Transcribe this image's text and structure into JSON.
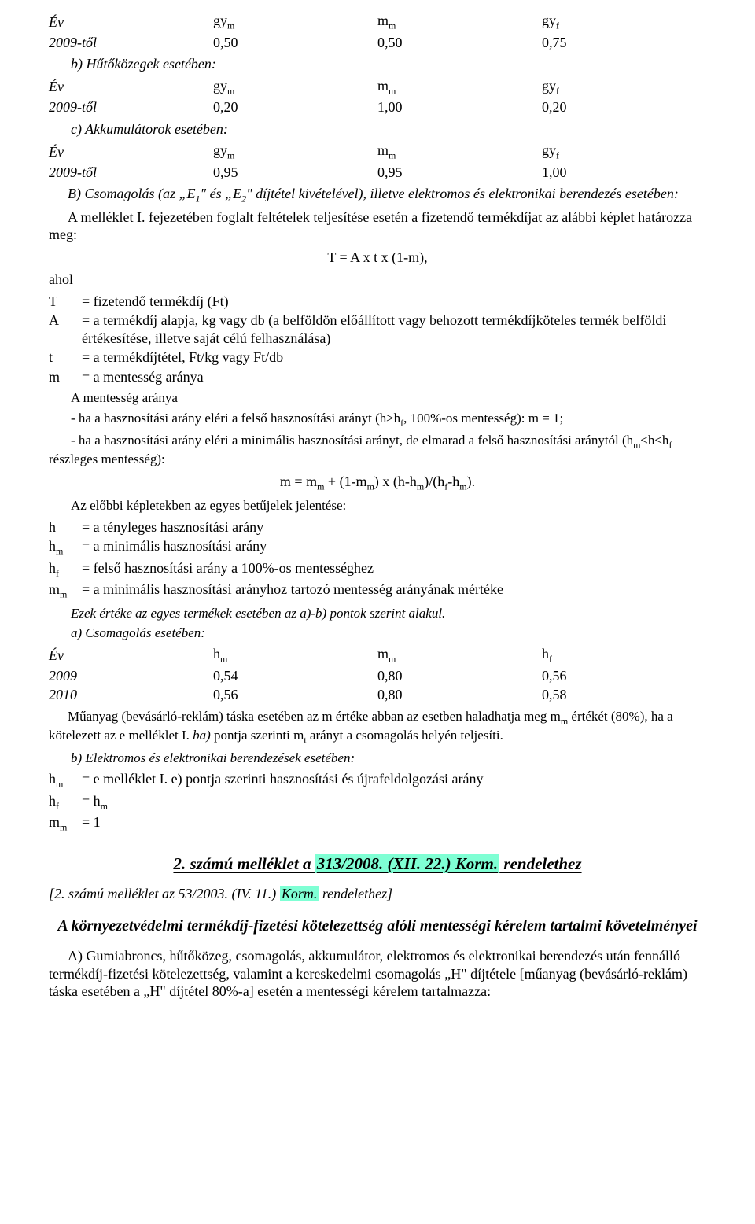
{
  "tableA": {
    "header": {
      "c1": "Év",
      "c2": "gy",
      "c2s": "m",
      "c3": "m",
      "c3s": "m",
      "c4": "gy",
      "c4s": "f"
    },
    "row": {
      "c1": "2009-től",
      "c2": "0,50",
      "c3": "0,50",
      "c4": "0,75"
    }
  },
  "titleB": "b) Hűtőközegek esetében:",
  "tableB": {
    "header": {
      "c1": "Év",
      "c2": "gy",
      "c2s": "m",
      "c3": "m",
      "c3s": "m",
      "c4": "gy",
      "c4s": "f"
    },
    "row": {
      "c1": "2009-től",
      "c2": "0,20",
      "c3": "1,00",
      "c4": "0,20"
    }
  },
  "titleC": "c) Akkumulátorok esetében:",
  "tableC": {
    "header": {
      "c1": "Év",
      "c2": "gy",
      "c2s": "m",
      "c3": "m",
      "c3s": "m",
      "c4": "gy",
      "c4s": "f"
    },
    "row": {
      "c1": "2009-től",
      "c2": "0,95",
      "c3": "0,95",
      "c4": "1,00"
    }
  },
  "Btext": {
    "line1a": "B) Csomagolás (az „E",
    "line1s1": "1",
    "line1b": "\" és „E",
    "line1s2": "2",
    "line1c": "\" díjtétel kivételével), illetve elektromos és elektronikai berendezés esetében:",
    "line2": "A melléklet I. fejezetében foglalt feltételek teljesítése esetén a fizetendő termékdíjat az alábbi képlet határozza meg:"
  },
  "formula1": "T = A x t x (1-m),",
  "ahol": "ahol",
  "defs": {
    "r1": {
      "s": "T",
      "d": "= fizetendő termékdíj (Ft)"
    },
    "r2": {
      "s": "A",
      "d": "= a termékdíj alapja, kg vagy db (a belföldön előállított vagy behozott termékdíjköteles termék belföldi értékesítése, illetve saját célú felhasználása)"
    },
    "r3": {
      "s": "t",
      "d": "= a termékdíjtétel, Ft/kg vagy Ft/db"
    },
    "r4": {
      "s": "m",
      "d": "= a mentesség aránya"
    }
  },
  "ment": {
    "l0": "A mentesség aránya",
    "l1a": "- ha a hasznosítási arány eléri a felső hasznosítási arányt (h≥h",
    "l1s": "f",
    "l1b": ", 100%-os mentesség): m = 1;",
    "l2a": "- ha a hasznosítási arány eléri a minimális hasznosítási arányt, de elmarad a felső hasznosítási aránytól (h",
    "l2s1": "m",
    "l2b": "≤h<h",
    "l2s2": "f ",
    "l2c": "részleges mentesség):"
  },
  "formula2": {
    "a": "m = m",
    "s1": "m",
    "b": " + (1-m",
    "s2": "m",
    "c": ") x (h-h",
    "s3": "m",
    "d": ")/(h",
    "s4": "f",
    "e": "-h",
    "s5": "m",
    "f": ")."
  },
  "prevline": "Az előbbi képletekben az egyes betűjelek jelentése:",
  "defs2": {
    "r1": {
      "s": "h",
      "d": "= a tényleges hasznosítási arány"
    },
    "r2": {
      "sa": "h",
      "ss": "m",
      "d": "= a minimális hasznosítási arány"
    },
    "r3": {
      "sa": "h",
      "ss": "f",
      "d": "= felső hasznosítási arány a 100%-os mentességhez"
    },
    "r4": {
      "sa": "m",
      "ss": "m",
      "d": "= a minimális hasznosítási arányhoz tartozó mentesség arányának mértéke"
    }
  },
  "ezek": "Ezek értéke az egyes termékek esetében az a)-b) pontok szerint alakul.",
  "aCsom": "a) Csomagolás esetében:",
  "tableD": {
    "header": {
      "c1": "Év",
      "c2a": "h",
      "c2s": "m",
      "c3a": "m",
      "c3s": "m",
      "c4a": "h",
      "c4s": "f"
    },
    "r1": {
      "c1": "2009",
      "c2": "0,54",
      "c3": "0,80",
      "c4": "0,56"
    },
    "r2": {
      "c1": "2010",
      "c2": "0,56",
      "c3": "0,80",
      "c4": "0,58"
    }
  },
  "muanyag": {
    "a": "Műanyag (bevásárló-reklám) táska esetében az m értéke abban az esetben haladhatja meg m",
    "s1": "m",
    "b": " értékét (80%), ha a kötelezett az e melléklet I. ",
    "c": "ba)",
    "d": " pontja szerinti m",
    "s2": "t",
    "e": " arányt a csomagolás helyén teljesíti."
  },
  "bElek": "b) Elektromos és elektronikai berendezések esetében:",
  "defs3": {
    "r1": {
      "sa": "h",
      "ss": "m",
      "d": "= e melléklet I. e) pontja szerinti hasznosítási és újrafeldolgozási arány"
    },
    "r2": {
      "sa": "h",
      "ss": "f",
      "db": "= h",
      "ds": "m"
    },
    "r3": {
      "sa": "m",
      "ss": "m",
      "d": "= 1"
    }
  },
  "section2": {
    "a": "2. számú melléklet a ",
    "hl": "313/2008. (XII. 22.) Korm.",
    "b": " rendelethez"
  },
  "subref": {
    "a": "[2. számú melléklet az 53/2003. (IV. 11.) ",
    "hl": "Korm.",
    "b": " rendelethez]"
  },
  "subtitle": "A környezetvédelmi termékdíj-fizetési kötelezettség alóli mentességi kérelem tartalmi követelményei",
  "lastpara": "A) Gumiabroncs, hűtőközeg, csomagolás, akkumulátor, elektromos és elektronikai berendezés után fennálló termékdíj-fizetési kötelezettség, valamint a kereskedelmi csomagolás „H\" díjtétele [műanyag (bevásárló-reklám) táska esetében a „H\" díjtétel 80%-a] esetén a mentességi kérelem tartalmazza:"
}
